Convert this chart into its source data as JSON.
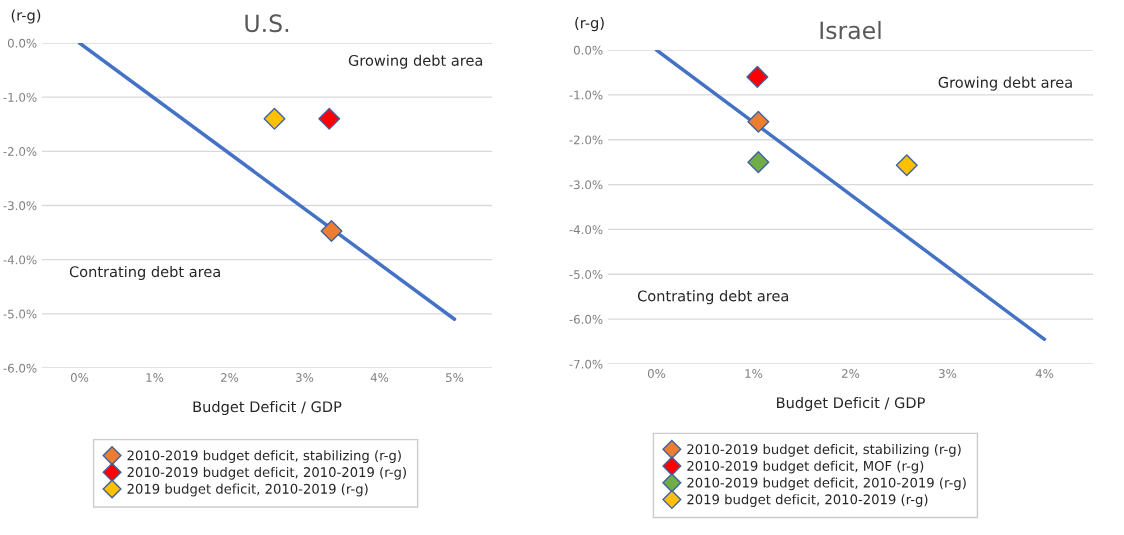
{
  "chart_data": [
    {
      "type": "scatter",
      "title": "U.S.",
      "xlabel": "Budget Deficit / GDP",
      "ylabel": "(r-g)",
      "xlim": [
        -0.5,
        5.5
      ],
      "xticks": [
        {
          "value": 0,
          "label": "0%"
        },
        {
          "value": 1,
          "label": "1%"
        },
        {
          "value": 2,
          "label": "2%"
        },
        {
          "value": 3,
          "label": "3%"
        },
        {
          "value": 4,
          "label": "4%"
        },
        {
          "value": 5,
          "label": "5%"
        }
      ],
      "ylim": [
        -6,
        0
      ],
      "yticks": [
        {
          "value": 0,
          "label": "0.0%"
        },
        {
          "value": -1,
          "label": "-1.0%"
        },
        {
          "value": -2,
          "label": "-2.0%"
        },
        {
          "value": -3,
          "label": "-3.0%"
        },
        {
          "value": -4,
          "label": "-4.0%"
        },
        {
          "value": -5,
          "label": "-5.0%"
        },
        {
          "value": -6,
          "label": "-6.0%"
        }
      ],
      "grid": "y",
      "legend": "bottom",
      "series": [
        {
          "type": "line",
          "color": "#4472c4",
          "x": [
            0,
            5
          ],
          "values": [
            0,
            -5.1
          ]
        },
        {
          "name": "2010-2019 budget deficit, stabilizing (r-g)",
          "marker": "diamond",
          "color": "#ed7d31",
          "x": [
            3.36
          ],
          "values": [
            -3.47
          ]
        },
        {
          "name": "2010-2019 budget deficit, 2010-2019 (r-g)",
          "marker": "diamond",
          "color": "#ff0000",
          "x": [
            3.33
          ],
          "values": [
            -1.4
          ]
        },
        {
          "name": "2019 budget deficit, 2010-2019 (r-g)",
          "marker": "diamond",
          "color": "#ffc000",
          "x": [
            2.6
          ],
          "values": [
            -1.4
          ]
        }
      ],
      "annotations": [
        "Growing debt area",
        "Contrating debt area"
      ]
    },
    {
      "type": "scatter",
      "title": "Israel",
      "xlabel": "Budget Deficit / GDP",
      "ylabel": "(r-g)",
      "xlim": [
        -0.5,
        4.5
      ],
      "xticks": [
        {
          "value": 0,
          "label": "0%"
        },
        {
          "value": 1,
          "label": "1%"
        },
        {
          "value": 2,
          "label": "2%"
        },
        {
          "value": 3,
          "label": "3%"
        },
        {
          "value": 4,
          "label": "4%"
        }
      ],
      "ylim": [
        -7,
        0
      ],
      "yticks": [
        {
          "value": 0,
          "label": "0.0%"
        },
        {
          "value": -1,
          "label": "-1.0%"
        },
        {
          "value": -2,
          "label": "-2.0%"
        },
        {
          "value": -3,
          "label": "-3.0%"
        },
        {
          "value": -4,
          "label": "-4.0%"
        },
        {
          "value": -5,
          "label": "-5.0%"
        },
        {
          "value": -6,
          "label": "-6.0%"
        },
        {
          "value": -7,
          "label": "-7.0%"
        }
      ],
      "grid": "y",
      "legend": "bottom",
      "series": [
        {
          "type": "line",
          "color": "#4472c4",
          "x": [
            0,
            4
          ],
          "values": [
            0,
            -6.45
          ]
        },
        {
          "name": "2010-2019 budget deficit, stabilizing (r-g)",
          "marker": "diamond",
          "color": "#ed7d31",
          "x": [
            1.05
          ],
          "values": [
            -1.6
          ]
        },
        {
          "name": "2010-2019 budget deficit, MOF (r-g)",
          "marker": "diamond",
          "color": "#ff0000",
          "x": [
            1.04
          ],
          "values": [
            -0.6
          ]
        },
        {
          "name": "2010-2019 budget deficit, 2010-2019 (r-g)",
          "marker": "diamond",
          "color": "#70ad47",
          "x": [
            1.05
          ],
          "values": [
            -2.5
          ]
        },
        {
          "name": "2019 budget deficit, 2010-2019 (r-g)",
          "marker": "diamond",
          "color": "#ffc000",
          "x": [
            2.58
          ],
          "values": [
            -2.57
          ]
        }
      ],
      "annotations": [
        "Growing debt area",
        "Contrating debt area"
      ]
    }
  ]
}
